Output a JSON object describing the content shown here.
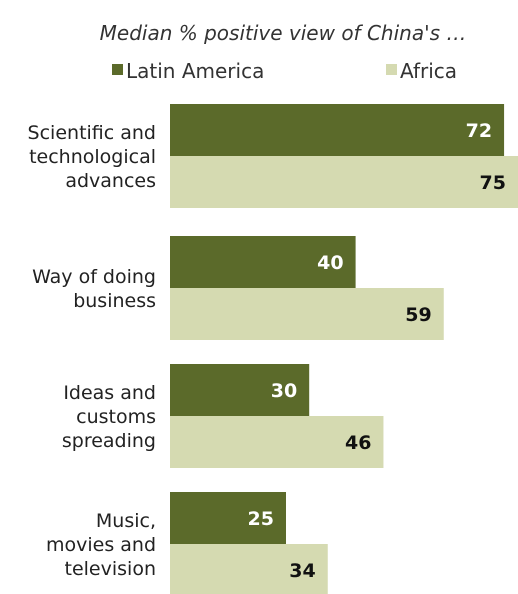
{
  "chart_data": {
    "type": "bar",
    "orientation": "horizontal",
    "title": "Median % positive view of China's …",
    "categories": [
      [
        "Scientific and",
        "technological",
        "advances"
      ],
      [
        "Way of doing",
        "business"
      ],
      [
        "Ideas and",
        "customs",
        "spreading"
      ],
      [
        "Music,",
        "movies and",
        "television"
      ]
    ],
    "series": [
      {
        "name": "Latin America",
        "values": [
          72,
          40,
          30,
          25
        ],
        "color": "#5b6a2a"
      },
      {
        "name": "Africa",
        "values": [
          75,
          59,
          46,
          34
        ],
        "color": "#d5dab1"
      }
    ],
    "xlim": [
      0,
      75
    ],
    "legend_position": "top",
    "grid": false,
    "data_labels": true
  }
}
